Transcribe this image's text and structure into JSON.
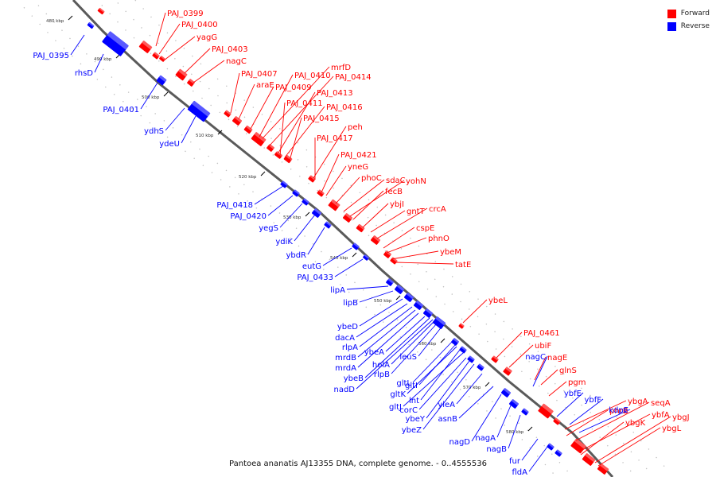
{
  "caption": "Pantoea ananatis AJ13355 DNA, complete genome. - 0..4555536",
  "legend": {
    "forward_label": "Forward",
    "reverse_label": "Reverse",
    "forward_color": "#ff0000",
    "reverse_color": "#0000ff"
  },
  "ticks": [
    "480 kbp",
    "490 kbp",
    "500 kbp",
    "510 kbp",
    "520 kbp",
    "530 kbp",
    "540 kbp",
    "550 kbp",
    "560 kbp",
    "570 kbp",
    "580 kbp"
  ],
  "forward_genes": [
    "PAJ_0399",
    "PAJ_0400",
    "yagG",
    "PAJ_0403",
    "nagC",
    "PAJ_0407",
    "araE",
    "PAJ_0409",
    "PAJ_0410",
    "mrfD",
    "PAJ_0414",
    "PAJ_0413",
    "PAJ_0411",
    "PAJ_0416",
    "PAJ_0415",
    "peh",
    "PAJ_0417",
    "PAJ_0421",
    "yneG",
    "phoC",
    "sdaC",
    "yohN",
    "fecB",
    "ybjI",
    "gntT",
    "crcA",
    "cspE",
    "phnO",
    "ybeM",
    "tatE",
    "ybeL",
    "PAJ_0461",
    "ubiF",
    "nagE",
    "glnS",
    "pgm",
    "ybgA",
    "seqA",
    "phrB",
    "ybfA",
    "ybgK",
    "ybgJ",
    "ybgL"
  ],
  "reverse_genes": [
    "PAJ_0395",
    "rhsD",
    "PAJ_0401",
    "ydhS",
    "ydeU",
    "PAJ_0418",
    "PAJ_0420",
    "yegS",
    "ydiK",
    "ybdR",
    "eutG",
    "PAJ_0433",
    "lipA",
    "lipB",
    "ybeD",
    "dacA",
    "rlpA",
    "mrdB",
    "mrdA",
    "ybeA",
    "ybeB",
    "nadD",
    "holA",
    "rlpB",
    "leuS",
    "gltL",
    "gltI",
    "gltK",
    "lnt",
    "gltJ",
    "corC",
    "ybeY",
    "ybeZ",
    "yleA",
    "asnB",
    "nagC",
    "ybfE",
    "ybfF",
    "kdpE",
    "nagD",
    "nagA",
    "nagB",
    "fur",
    "fldA"
  ]
}
